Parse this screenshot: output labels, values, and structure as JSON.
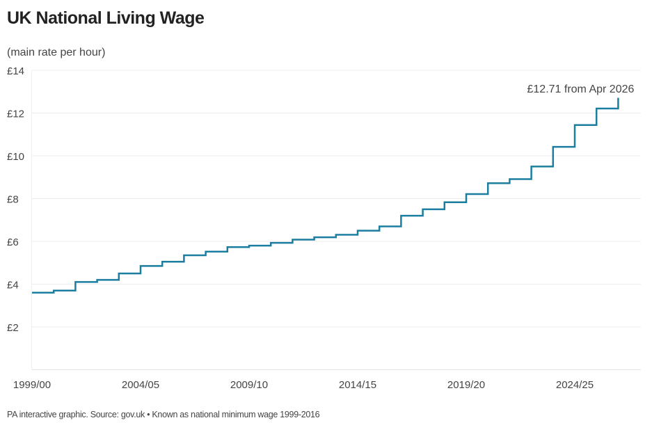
{
  "title": "UK National Living Wage",
  "footer": "PA interactive graphic. Source: gov.uk • Known as national minimum wage 1999-2016",
  "chart_data": {
    "type": "line",
    "step": true,
    "title": "UK National Living Wage",
    "ylabel": "(main rate per hour)",
    "xlabel": "",
    "x": [
      1999,
      2000,
      2001,
      2002,
      2003,
      2004,
      2005,
      2006,
      2007,
      2008,
      2009,
      2010,
      2011,
      2012,
      2013,
      2014,
      2015,
      2016,
      2017,
      2018,
      2019,
      2020,
      2021,
      2022,
      2023,
      2024,
      2025,
      2026
    ],
    "values": [
      3.6,
      3.7,
      4.1,
      4.2,
      4.5,
      4.85,
      5.05,
      5.35,
      5.52,
      5.73,
      5.8,
      5.93,
      6.08,
      6.19,
      6.31,
      6.5,
      6.7,
      7.2,
      7.5,
      7.83,
      8.21,
      8.72,
      8.91,
      9.5,
      10.42,
      11.44,
      12.21,
      12.71
    ],
    "xlim": [
      1999,
      2028.5
    ],
    "ylim": [
      0,
      14
    ],
    "yticks": [
      2,
      4,
      6,
      8,
      10,
      12,
      14
    ],
    "ytick_labels": [
      "£2",
      "£4",
      "£6",
      "£8",
      "£10",
      "£12",
      "£14"
    ],
    "xticks": [
      1999,
      2004,
      2009,
      2014,
      2019,
      2024
    ],
    "xtick_labels": [
      "1999/00",
      "2004/05",
      "2009/10",
      "2014/15",
      "2019/20",
      "2024/25"
    ],
    "grid": true,
    "line_color": "#1b7ea0",
    "annotation": "£12.71 from Apr 2026"
  }
}
